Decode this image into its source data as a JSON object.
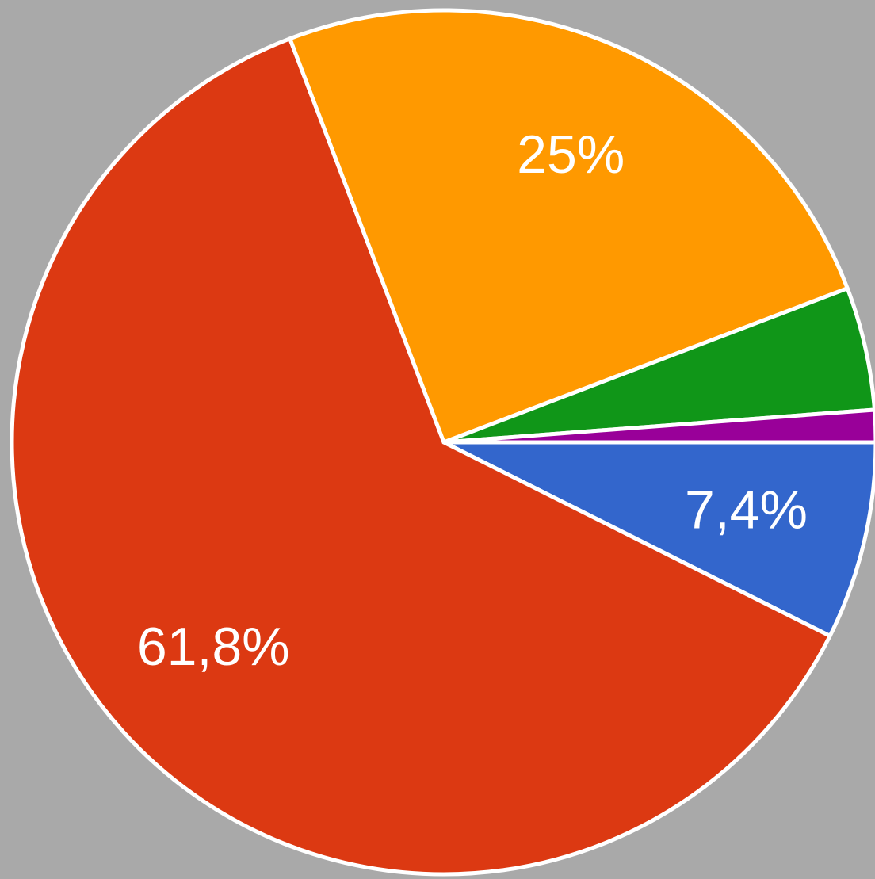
{
  "chart_data": {
    "type": "pie",
    "values": [
      7.4,
      61.8,
      25,
      4.6,
      1.2
    ],
    "value_labels": [
      "7,4%",
      "61,8%",
      "25%",
      null,
      null
    ],
    "colors": [
      "#3366cc",
      "#dc3912",
      "#ff9900",
      "#109618",
      "#990099"
    ]
  }
}
